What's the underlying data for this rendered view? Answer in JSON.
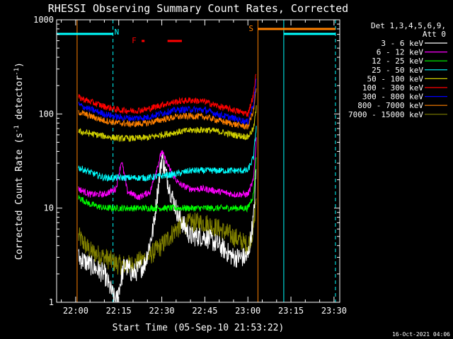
{
  "chart_data": {
    "type": "line",
    "title": "RHESSI Observing Summary Count Rates, Corrected",
    "xlabel": "Start Time (05-Sep-10 21:53:22)",
    "ylabel": "Corrected Count Rate (s^-1 detector^-1)",
    "ylabel_parts": {
      "main": "Corrected Count Rate (s",
      "exp1": "-1",
      "mid": " detector",
      "exp2": "-1",
      "end": ")"
    },
    "xlim": [
      "21:53:22",
      "23:32:00"
    ],
    "ylim": [
      1,
      1000
    ],
    "y_scale": "log",
    "x_ticks": [
      "22:00",
      "22:15",
      "22:30",
      "22:45",
      "23:00",
      "23:15",
      "23:30"
    ],
    "y_ticks": [
      "1",
      "10",
      "100",
      "1000"
    ],
    "legend_header": [
      "Det 1,3,4,5,6,9,",
      "Att 0"
    ],
    "timestamp": "16-Oct-2021 04:06",
    "flags": {
      "night_label": "N",
      "flare_label": "F",
      "saa_label": "S",
      "night_intervals": [
        [
          "21:53:22",
          "22:13:00"
        ],
        [
          "23:12:30",
          "23:30:30"
        ]
      ],
      "flare_intervals": [
        [
          "22:23:00",
          "22:24:00"
        ],
        [
          "22:32:00",
          "22:37:00"
        ]
      ],
      "saa_intervals": [
        [
          "23:03:30",
          "23:30:30"
        ]
      ],
      "colors": {
        "night": "#00ffff",
        "flare": "#ff0000",
        "saa": "#ff8000"
      }
    },
    "markers": [
      {
        "time": "21:53:22",
        "color": "#00ffff",
        "style": "solid"
      },
      {
        "time": "22:00:30",
        "color": "#ff8000",
        "style": "solid"
      },
      {
        "time": "22:13:00",
        "color": "#00ffff",
        "style": "dashed"
      },
      {
        "time": "23:03:30",
        "color": "#ff8000",
        "style": "solid"
      },
      {
        "time": "23:12:30",
        "color": "#00ffff",
        "style": "solid"
      },
      {
        "time": "23:30:30",
        "color": "#00ffff",
        "style": "dashed"
      }
    ],
    "data_window": [
      "22:00:30",
      "23:04:00"
    ],
    "series": [
      {
        "name": "3 - 6 keV",
        "color": "#ffffff",
        "points": [
          [
            "22:01",
            "3"
          ],
          [
            "22:05",
            "2.5"
          ],
          [
            "22:10",
            "2"
          ],
          [
            "22:14",
            "1"
          ],
          [
            "22:17",
            "2.5"
          ],
          [
            "22:20",
            "2"
          ],
          [
            "22:24",
            "2.5"
          ],
          [
            "22:27",
            "6"
          ],
          [
            "22:30",
            "35"
          ],
          [
            "22:33",
            "15"
          ],
          [
            "22:36",
            "8"
          ],
          [
            "22:40",
            "5"
          ],
          [
            "22:45",
            "5"
          ],
          [
            "22:50",
            "4"
          ],
          [
            "22:55",
            "3"
          ],
          [
            "23:00",
            "3"
          ],
          [
            "23:02",
            "8"
          ],
          [
            "23:03",
            "30"
          ]
        ]
      },
      {
        "name": "6 - 12 keV",
        "color": "#ff00ff",
        "points": [
          [
            "22:01",
            "16"
          ],
          [
            "22:05",
            "14"
          ],
          [
            "22:10",
            "14"
          ],
          [
            "22:14",
            "16"
          ],
          [
            "22:16",
            "32"
          ],
          [
            "22:18",
            "15"
          ],
          [
            "22:22",
            "13"
          ],
          [
            "22:26",
            "15"
          ],
          [
            "22:30",
            "40"
          ],
          [
            "22:33",
            "25"
          ],
          [
            "22:36",
            "18"
          ],
          [
            "22:40",
            "16"
          ],
          [
            "22:45",
            "16"
          ],
          [
            "22:50",
            "15"
          ],
          [
            "22:55",
            "14"
          ],
          [
            "23:00",
            "14"
          ],
          [
            "23:02",
            "20"
          ],
          [
            "23:03",
            "60"
          ]
        ]
      },
      {
        "name": "12 - 25 keV",
        "color": "#00ff00",
        "points": [
          [
            "22:01",
            "13"
          ],
          [
            "22:05",
            "11"
          ],
          [
            "22:10",
            "10"
          ],
          [
            "22:15",
            "10"
          ],
          [
            "22:20",
            "10"
          ],
          [
            "22:25",
            "10"
          ],
          [
            "22:30",
            "10"
          ],
          [
            "22:35",
            "10"
          ],
          [
            "22:40",
            "10"
          ],
          [
            "22:45",
            "10"
          ],
          [
            "22:50",
            "10"
          ],
          [
            "22:55",
            "10"
          ],
          [
            "23:00",
            "10"
          ],
          [
            "23:02",
            "14"
          ],
          [
            "23:03",
            "40"
          ]
        ]
      },
      {
        "name": "25 - 50 keV",
        "color": "#00ffff",
        "points": [
          [
            "22:01",
            "27"
          ],
          [
            "22:05",
            "24"
          ],
          [
            "22:10",
            "21"
          ],
          [
            "22:15",
            "21"
          ],
          [
            "22:20",
            "21"
          ],
          [
            "22:25",
            "21"
          ],
          [
            "22:30",
            "22"
          ],
          [
            "22:35",
            "23"
          ],
          [
            "22:40",
            "25"
          ],
          [
            "22:45",
            "25"
          ],
          [
            "22:50",
            "25"
          ],
          [
            "22:55",
            "25"
          ],
          [
            "23:00",
            "25"
          ],
          [
            "23:02",
            "35"
          ],
          [
            "23:03",
            "80"
          ]
        ]
      },
      {
        "name": "50 - 100 keV",
        "color": "#d0d000",
        "points": [
          [
            "22:01",
            "65"
          ],
          [
            "22:05",
            "62"
          ],
          [
            "22:10",
            "58"
          ],
          [
            "22:15",
            "55"
          ],
          [
            "22:20",
            "55"
          ],
          [
            "22:25",
            "56"
          ],
          [
            "22:30",
            "60"
          ],
          [
            "22:35",
            "64"
          ],
          [
            "22:40",
            "67"
          ],
          [
            "22:45",
            "68"
          ],
          [
            "22:50",
            "65"
          ],
          [
            "22:55",
            "60"
          ],
          [
            "23:00",
            "57"
          ],
          [
            "23:02",
            "70"
          ],
          [
            "23:03",
            "120"
          ]
        ]
      },
      {
        "name": "100 - 300 keV",
        "color": "#ff0000",
        "points": [
          [
            "22:01",
            "150"
          ],
          [
            "22:05",
            "135"
          ],
          [
            "22:10",
            "120"
          ],
          [
            "22:15",
            "110"
          ],
          [
            "22:20",
            "108"
          ],
          [
            "22:25",
            "112"
          ],
          [
            "22:30",
            "125"
          ],
          [
            "22:35",
            "135"
          ],
          [
            "22:40",
            "140"
          ],
          [
            "22:45",
            "135"
          ],
          [
            "22:50",
            "120"
          ],
          [
            "22:55",
            "110"
          ],
          [
            "23:00",
            "100"
          ],
          [
            "23:02",
            "160"
          ],
          [
            "23:03",
            "300"
          ]
        ]
      },
      {
        "name": "300 - 800 keV",
        "color": "#0000ff",
        "points": [
          [
            "22:01",
            "125"
          ],
          [
            "22:05",
            "112"
          ],
          [
            "22:10",
            "100"
          ],
          [
            "22:15",
            "92"
          ],
          [
            "22:20",
            "90"
          ],
          [
            "22:25",
            "92"
          ],
          [
            "22:30",
            "102"
          ],
          [
            "22:35",
            "110"
          ],
          [
            "22:40",
            "112"
          ],
          [
            "22:45",
            "110"
          ],
          [
            "22:50",
            "98"
          ],
          [
            "22:55",
            "90"
          ],
          [
            "23:00",
            "82"
          ],
          [
            "23:02",
            "130"
          ],
          [
            "23:03",
            "250"
          ]
        ]
      },
      {
        "name": "800 - 7000 keV",
        "color": "#ff8000",
        "points": [
          [
            "22:01",
            "105"
          ],
          [
            "22:05",
            "95"
          ],
          [
            "22:10",
            "85"
          ],
          [
            "22:15",
            "80"
          ],
          [
            "22:20",
            "78"
          ],
          [
            "22:25",
            "80"
          ],
          [
            "22:30",
            "87"
          ],
          [
            "22:35",
            "93"
          ],
          [
            "22:40",
            "95"
          ],
          [
            "22:45",
            "93"
          ],
          [
            "22:50",
            "85"
          ],
          [
            "22:55",
            "78"
          ],
          [
            "23:00",
            "73"
          ],
          [
            "23:02",
            "110"
          ],
          [
            "23:03",
            "200"
          ]
        ]
      },
      {
        "name": "7000 - 15000 keV",
        "color": "#808000",
        "points": [
          [
            "22:01",
            "5"
          ],
          [
            "22:05",
            "3.5"
          ],
          [
            "22:10",
            "3"
          ],
          [
            "22:15",
            "2.5"
          ],
          [
            "22:20",
            "2.5"
          ],
          [
            "22:25",
            "3"
          ],
          [
            "22:30",
            "4"
          ],
          [
            "22:35",
            "6"
          ],
          [
            "22:40",
            "7"
          ],
          [
            "22:45",
            "7"
          ],
          [
            "22:50",
            "6"
          ],
          [
            "22:55",
            "5"
          ],
          [
            "23:00",
            "4"
          ],
          [
            "23:02",
            "6"
          ],
          [
            "23:03",
            "15"
          ]
        ]
      }
    ]
  }
}
